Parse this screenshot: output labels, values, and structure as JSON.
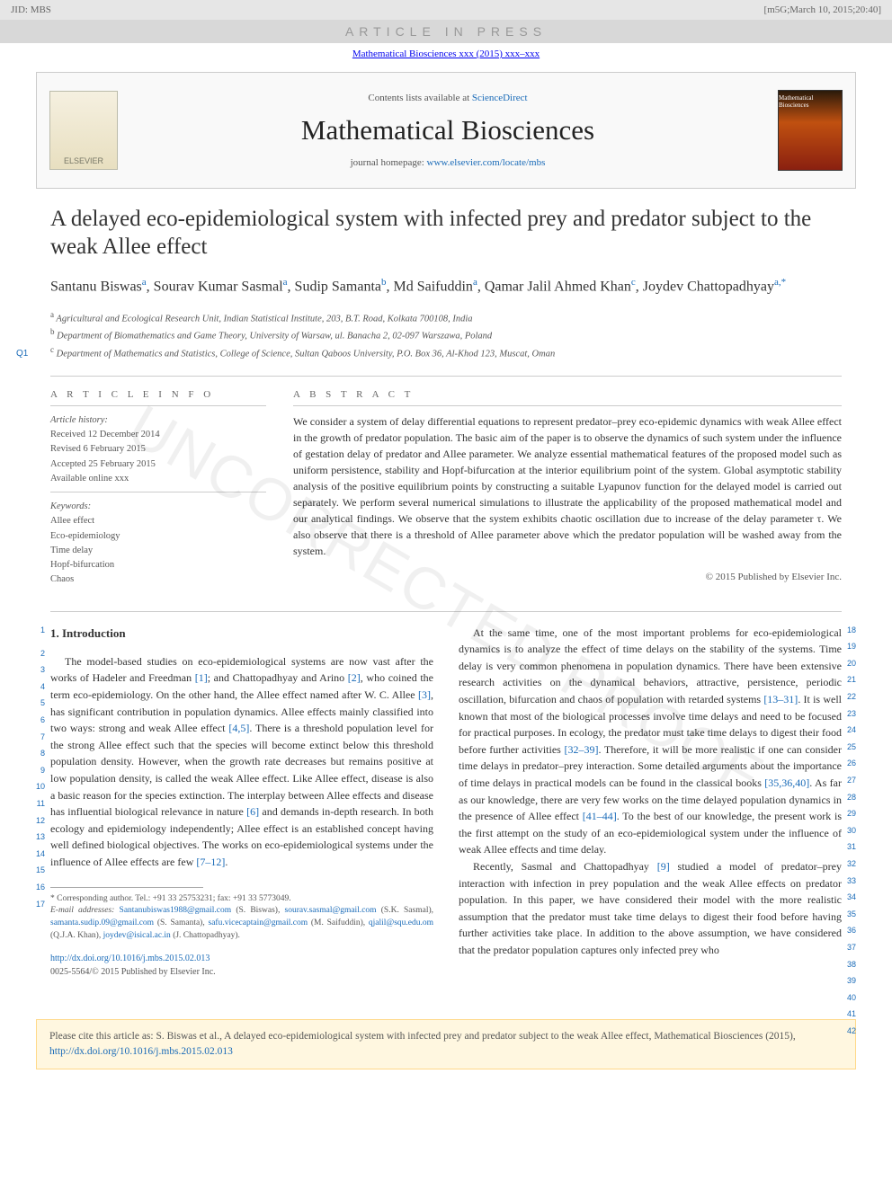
{
  "topbar": {
    "jid": "JID: MBS",
    "meta": "[m5G;March 10, 2015;20:40]"
  },
  "watermark_banner": "ARTICLE IN PRESS",
  "journal_link_line": "Mathematical Biosciences xxx (2015) xxx–xxx",
  "header_box": {
    "elsevier": "ELSEVIER",
    "contents_prefix": "Contents lists available at ",
    "contents_link": "ScienceDirect",
    "journal_title": "Mathematical Biosciences",
    "homepage_prefix": "journal homepage: ",
    "homepage_link": "www.elsevier.com/locate/mbs",
    "cover_label": "Mathematical Biosciences"
  },
  "proof_watermark": "UNCORRECTED PROOF",
  "q_tag": "Q1",
  "article_title": "A delayed eco-epidemiological system with infected prey and predator subject to the weak Allee effect",
  "authors_html": "Santanu Biswas<sup class='aff'>a</sup>, Sourav Kumar Sasmal<sup class='aff'>a</sup>, Sudip Samanta<sup class='aff'>b</sup>, Md Saifuddin<sup class='aff'>a</sup>, Qamar Jalil Ahmed Khan<sup class='aff'>c</sup>, Joydev Chattopadhyay<sup class='aff'>a,*</sup>",
  "affiliations": [
    {
      "sup": "a",
      "text": "Agricultural and Ecological Research Unit, Indian Statistical Institute, 203, B.T. Road, Kolkata 700108, India"
    },
    {
      "sup": "b",
      "text": "Department of Biomathematics and Game Theory, University of Warsaw, ul. Banacha 2, 02-097 Warszawa, Poland"
    },
    {
      "sup": "c",
      "text": "Department of Mathematics and Statistics, College of Science, Sultan Qaboos University, P.O. Box 36, Al-Khod 123, Muscat, Oman"
    }
  ],
  "article_info": {
    "heading": "A R T I C L E   I N F O",
    "history_label": "Article history:",
    "history": [
      "Received 12 December 2014",
      "Revised 6 February 2015",
      "Accepted 25 February 2015",
      "Available online xxx"
    ],
    "keywords_label": "Keywords:",
    "keywords": [
      "Allee effect",
      "Eco-epidemiology",
      "Time delay",
      "Hopf-bifurcation",
      "Chaos"
    ]
  },
  "abstract": {
    "heading": "A B S T R A C T",
    "text": "We consider a system of delay differential equations to represent predator–prey eco-epidemic dynamics with weak Allee effect in the growth of predator population. The basic aim of the paper is to observe the dynamics of such system under the influence of gestation delay of predator and Allee parameter. We analyze essential mathematical features of the proposed model such as uniform persistence, stability and Hopf-bifurcation at the interior equilibrium point of the system. Global asymptotic stability analysis of the positive equilibrium points by constructing a suitable Lyapunov function for the delayed model is carried out separately. We perform several numerical simulations to illustrate the applicability of the proposed mathematical model and our analytical findings. We observe that the system exhibits chaotic oscillation due to increase of the delay parameter τ. We also observe that there is a threshold of Allee parameter above which the predator population will be washed away from the system.",
    "copyright": "© 2015 Published by Elsevier Inc."
  },
  "section1": {
    "heading": "1. Introduction",
    "left_line_nums": [
      "1",
      "2",
      "3",
      "4",
      "5",
      "6",
      "7",
      "8",
      "9",
      "10",
      "11",
      "12",
      "13",
      "14",
      "15",
      "16",
      "17"
    ],
    "para1": "The model-based studies on eco-epidemiological systems are now vast after the works of Hadeler and Freedman [1]; and Chattopadhyay and Arino [2], who coined the term eco-epidemiology. On the other hand, the Allee effect named after W. C. Allee [3], has significant contribution in population dynamics. Allee effects mainly classified into two ways: strong and weak Allee effect [4,5]. There is a threshold population level for the strong Allee effect such that the species will become extinct below this threshold population density. However, when the growth rate decreases but remains positive at low population density, is called the weak Allee effect. Like Allee effect, disease is also a basic reason for the species extinction. The interplay between Allee effects and disease has influential biological relevance in nature [6] and demands in-depth research. In both ecology and epidemiology independently; Allee effect is an established concept having well defined biological objectives. The works on eco-epidemiological systems under the influence of Allee effects are few [7–12].",
    "right_line_nums": [
      "18",
      "19",
      "20",
      "21",
      "22",
      "23",
      "24",
      "25",
      "26",
      "27",
      "28",
      "29",
      "30",
      "31",
      "32",
      "33",
      "34",
      "35",
      "36",
      "37",
      "38",
      "39",
      "40",
      "41",
      "42"
    ],
    "para2": "At the same time, one of the most important problems for eco-epidemiological dynamics is to analyze the effect of time delays on the stability of the systems. Time delay is very common phenomena in population dynamics. There have been extensive research activities on the dynamical behaviors, attractive, persistence, periodic oscillation, bifurcation and chaos of population with retarded systems [13–31]. It is well known that most of the biological processes involve time delays and need to be focused for practical purposes. In ecology, the predator must take time delays to digest their food before further activities [32–39]. Therefore, it will be more realistic if one can consider time delays in predator–prey interaction. Some detailed arguments about the importance of time delays in practical models can be found in the classical books [35,36,40]. As far as our knowledge, there are very few works on the time delayed population dynamics in the presence of Allee effect [41–44]. To the best of our knowledge, the present work is the first attempt on the study of an eco-epidemiological system under the influence of weak Allee effects and time delay.",
    "para3": "Recently, Sasmal and Chattopadhyay [9] studied a model of predator–prey interaction with infection in prey population and the weak Allee effects on predator population. In this paper, we have considered their model with the more realistic assumption that the predator must take time delays to digest their food before having further activities take place. In addition to the above assumption, we have considered that the predator population captures only infected prey who"
  },
  "footnotes": {
    "corresponding": "* Corresponding author. Tel.: +91 33 25753231; fax: +91 33 5773049.",
    "emails_label": "E-mail addresses: ",
    "emails": "Santanubiswas1988@gmail.com (S. Biswas), sourav.sasmal@gmail.com (S.K. Sasmal), samanta.sudip.09@gmail.com (S. Samanta), safu.vicecaptain@gmail.com (M. Saifuddin), qjalil@squ.edu.om (Q.J.A. Khan), joydev@isical.ac.in (J. Chattopadhyay)."
  },
  "doi": {
    "link": "http://dx.doi.org/10.1016/j.mbs.2015.02.013",
    "issn": "0025-5564/© 2015 Published by Elsevier Inc."
  },
  "citation_box": {
    "text": "Please cite this article as: S. Biswas et al., A delayed eco-epidemiological system with infected prey and predator subject to the weak Allee effect, Mathematical Biosciences (2015), ",
    "link": "http://dx.doi.org/10.1016/j.mbs.2015.02.013"
  },
  "colors": {
    "link": "#1a6bb8",
    "topbar_bg": "#e6e6e6",
    "banner_bg": "#d8d8d8",
    "headerbox_bg": "#f9f9f9",
    "headerbox_border": "#cccccc",
    "citation_bg": "#fff7e0",
    "citation_border": "#ffd98a",
    "watermark": "rgba(0,0,0,0.06)"
  }
}
